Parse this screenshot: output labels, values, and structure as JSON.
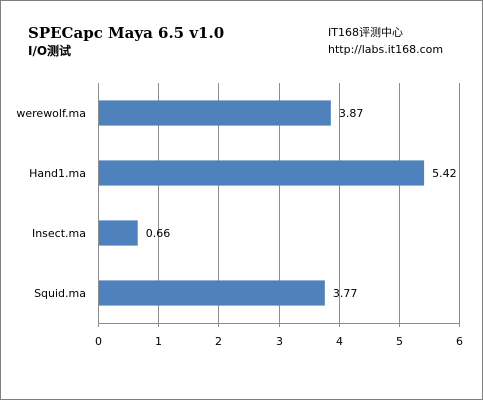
{
  "chart_data": {
    "type": "bar",
    "orientation": "horizontal",
    "title": "SPECapc Maya 6.5 v1.0",
    "subtitle": "I/O测试",
    "categories": [
      "werewolf.ma",
      "Hand1.ma",
      "Insect.ma",
      "Squid.ma"
    ],
    "values": [
      3.87,
      5.42,
      0.66,
      3.77
    ],
    "value_labels": [
      "3.87",
      "5.42",
      "0.66",
      "3.77"
    ],
    "xlim": [
      0,
      6
    ],
    "xticks": [
      "0",
      "1",
      "2",
      "3",
      "4",
      "5",
      "6"
    ],
    "grid": "vertical",
    "bar_color": "#4f81bd",
    "annotations": [
      "IT168评测中心",
      "http://labs.it168.com"
    ]
  }
}
